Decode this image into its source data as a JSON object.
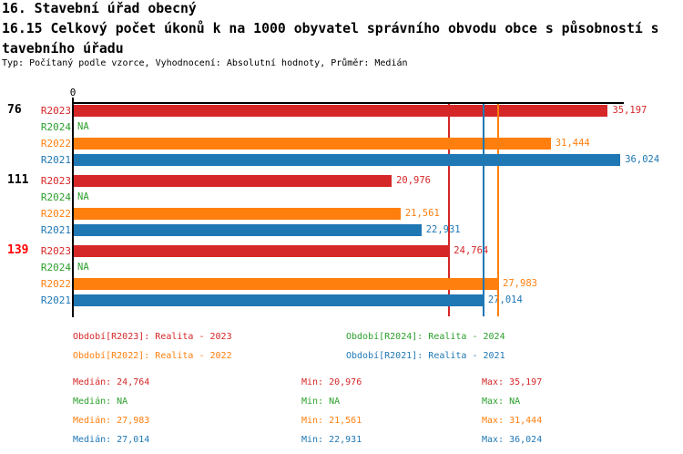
{
  "header": {
    "title_line1": "16. Stavební úřad obecný",
    "title_line2": "16.15 Celkový počet úkonů k na 1000 obyvatel správního obvodu obce s působností s",
    "title_line3": "tavebního úřadu",
    "meta_line": "Typ: Počítaný podle vzorce, Vyhodnocení: Absolutní hodnoty, Průměr: Medián"
  },
  "colors": {
    "r2023": "#d62728",
    "r2024": "#2ca02c",
    "r2022": "#ff7f0e",
    "r2021": "#1f77b4",
    "highlight_group": "#ff0000",
    "axis": "#000000"
  },
  "chart_data": {
    "type": "bar",
    "orientation": "horizontal",
    "title": "16.15 Celkový počet úkonů k na 1000 obyvatel správního obvodu obce s působností stavebního úřadu",
    "axis": {
      "origin_tick_label": "0",
      "min": 0,
      "max": 36.25,
      "grid": false
    },
    "series_order": [
      "R2023",
      "R2024",
      "R2022",
      "R2021"
    ],
    "series": {
      "R2023": {
        "label": "R2023",
        "color": "#d62728",
        "legend": "Období[R2023]: Realita - 2023",
        "median": 24.764,
        "stats": {
          "median": "24,764",
          "min": "20,976",
          "max": "35,197"
        }
      },
      "R2024": {
        "label": "R2024",
        "color": "#2ca02c",
        "legend": "Období[R2024]: Realita - 2024",
        "median": null,
        "stats": {
          "median": "NA",
          "min": "NA",
          "max": "NA"
        }
      },
      "R2022": {
        "label": "R2022",
        "color": "#ff7f0e",
        "legend": "Období[R2022]: Realita - 2022",
        "median": 27.983,
        "stats": {
          "median": "27,983",
          "min": "21,561",
          "max": "31,444"
        }
      },
      "R2021": {
        "label": "R2021",
        "color": "#1f77b4",
        "legend": "Období[R2021]: Realita - 2021",
        "median": 27.014,
        "stats": {
          "median": "27,014",
          "min": "22,931",
          "max": "36,024"
        }
      }
    },
    "groups": [
      {
        "label": "76",
        "highlighted": false,
        "values": {
          "R2023": 35.197,
          "R2024": null,
          "R2022": 31.444,
          "R2021": 36.024
        },
        "displays": {
          "R2023": "35,197",
          "R2024": "NA",
          "R2022": "31,444",
          "R2021": "36,024"
        }
      },
      {
        "label": "111",
        "highlighted": false,
        "values": {
          "R2023": 20.976,
          "R2024": null,
          "R2022": 21.561,
          "R2021": 22.931
        },
        "displays": {
          "R2023": "20,976",
          "R2024": "NA",
          "R2022": "21,561",
          "R2021": "22,931"
        }
      },
      {
        "label": "139",
        "highlighted": true,
        "values": {
          "R2023": 24.764,
          "R2024": null,
          "R2022": 27.983,
          "R2021": 27.014
        },
        "displays": {
          "R2023": "24,764",
          "R2024": "NA",
          "R2022": "27,983",
          "R2021": "27,014"
        }
      }
    ]
  },
  "legend": {
    "columns": [
      [
        "R2023",
        "R2022"
      ],
      [
        "R2024",
        "R2021"
      ]
    ]
  },
  "stats_table": {
    "median_label": "Medián",
    "min_label": "Min",
    "max_label": "Max",
    "row_order": [
      "R2023",
      "R2024",
      "R2022",
      "R2021"
    ]
  }
}
